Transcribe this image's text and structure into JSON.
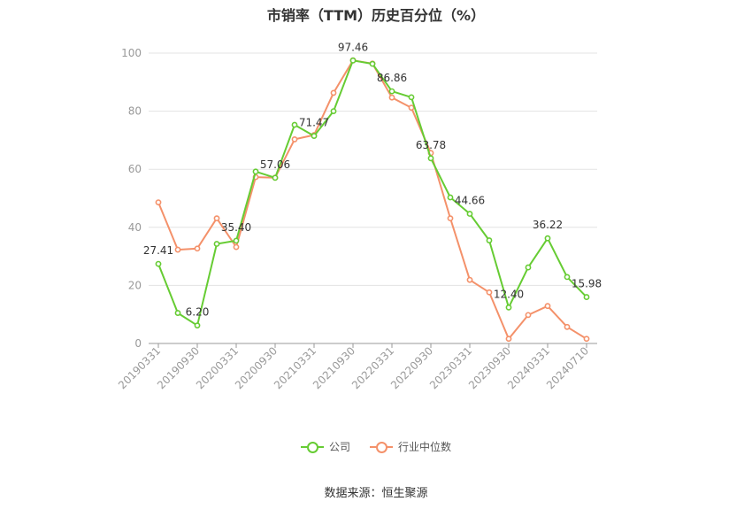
{
  "title": "市销率（TTM）历史百分位（%）",
  "source": "数据来源：恒生聚源",
  "chart_data": {
    "type": "line",
    "title": "市销率（TTM）历史百分位（%）",
    "ylim": [
      0,
      100
    ],
    "yticks": [
      0,
      20,
      40,
      60,
      80,
      100
    ],
    "grid": true,
    "legend_position": "bottom",
    "x_tick_labels": [
      "20190331",
      "20190930",
      "20200331",
      "20200930",
      "20210331",
      "20210930",
      "20220331",
      "20220930",
      "20230331",
      "20230930",
      "20240331",
      "20240710"
    ],
    "series": [
      {
        "name": "公司",
        "color": "#66cc33",
        "values": [
          27.41,
          10.5,
          6.2,
          34.3,
          35.4,
          59.2,
          57.06,
          75.3,
          71.47,
          80.0,
          97.46,
          96.3,
          86.86,
          84.8,
          63.78,
          50.3,
          44.66,
          35.5,
          12.4,
          26.2,
          36.22,
          22.9,
          15.98
        ],
        "labels": [
          "27.41",
          null,
          "6.20",
          null,
          "35.40",
          null,
          "57.06",
          null,
          "71.47",
          null,
          "97.46",
          null,
          "86.86",
          null,
          "63.78",
          null,
          "44.66",
          null,
          "12.40",
          null,
          "36.22",
          null,
          "15.98"
        ]
      },
      {
        "name": "行业中位数",
        "color": "#f4916a",
        "values": [
          48.6,
          32.3,
          32.7,
          43.1,
          33.2,
          57.3,
          57.1,
          70.3,
          71.8,
          86.3,
          97.5,
          96.4,
          84.7,
          81.2,
          65.6,
          43.1,
          21.9,
          17.6,
          1.6,
          9.8,
          12.9,
          5.7,
          1.6
        ]
      }
    ]
  }
}
